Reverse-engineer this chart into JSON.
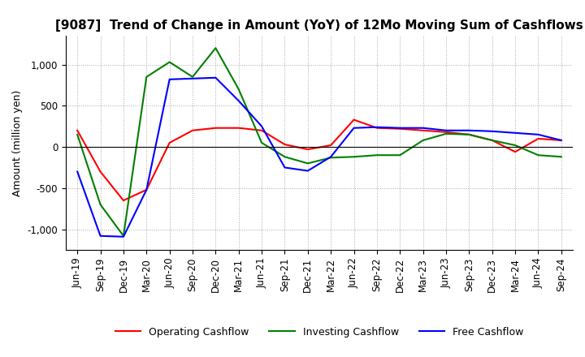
{
  "title": "[9087]  Trend of Change in Amount (YoY) of 12Mo Moving Sum of Cashflows",
  "ylabel": "Amount (million yen)",
  "ylim": [
    -1250,
    1350
  ],
  "yticks": [
    -1000,
    -500,
    0,
    500,
    1000
  ],
  "background_color": "#ffffff",
  "grid_color": "#aaaaaa",
  "x_labels": [
    "Jun-19",
    "Sep-19",
    "Dec-19",
    "Mar-20",
    "Jun-20",
    "Sep-20",
    "Dec-20",
    "Mar-21",
    "Jun-21",
    "Sep-21",
    "Dec-21",
    "Mar-22",
    "Jun-22",
    "Sep-22",
    "Dec-22",
    "Mar-23",
    "Jun-23",
    "Sep-23",
    "Dec-23",
    "Mar-24",
    "Jun-24",
    "Sep-24"
  ],
  "operating": [
    200,
    -300,
    -650,
    -520,
    50,
    200,
    230,
    230,
    200,
    30,
    -30,
    20,
    330,
    230,
    220,
    200,
    180,
    150,
    80,
    -60,
    100,
    80
  ],
  "investing": [
    150,
    -700,
    -1080,
    850,
    1030,
    850,
    1200,
    700,
    50,
    -120,
    -200,
    -130,
    -120,
    -100,
    -100,
    80,
    160,
    150,
    80,
    20,
    -100,
    -120
  ],
  "free": [
    -300,
    -1080,
    -1090,
    -520,
    820,
    830,
    840,
    560,
    250,
    -250,
    -290,
    -120,
    230,
    240,
    230,
    230,
    200,
    200,
    190,
    170,
    150,
    80
  ],
  "op_color": "#ff0000",
  "inv_color": "#008000",
  "free_color": "#0000ff",
  "legend_labels": [
    "Operating Cashflow",
    "Investing Cashflow",
    "Free Cashflow"
  ],
  "title_fontsize": 11,
  "axis_fontsize": 9,
  "tick_fontsize": 8.5
}
